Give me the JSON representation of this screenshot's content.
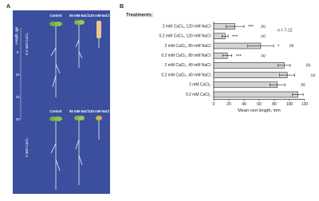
{
  "panel_labels": [
    "A",
    "B"
  ],
  "photo": {
    "columns": [
      "Control",
      "80 mM NaCl",
      "120 mM NaCl"
    ],
    "rows": [
      "0.2 mM CaCl₂",
      "2 mM CaCl₂"
    ],
    "ruler_title": "Length, cm",
    "ruler_ticks": [
      0,
      5,
      10,
      15,
      20
    ]
  },
  "chart_data": {
    "type": "barh",
    "title": "Treatments:",
    "annotation": "n = 7-12",
    "xlabel": "Mean root length, mm",
    "categories": [
      "2 mM CaCl₂, 120 mM NaCl",
      "0.2 mM CaCl₂, 120 mM NaCl",
      "2 mM CaCl₂, 80 mM NaCl",
      "0.2 mM CaCl₂, 80 mM NaCl",
      "2 mM CaCl₂, 40 mM NaCl",
      "0.2 mM CaCl₂, 40 mM NaCl",
      "2 mM CaCl₂",
      "0.2 mM CaCl₂"
    ],
    "series": [
      {
        "color": "#d4d4d4",
        "values": [
          28,
          15,
          62,
          18,
          93,
          97,
          84,
          111
        ],
        "errors": [
          12,
          4,
          17,
          6,
          8,
          10,
          10,
          7
        ]
      }
    ],
    "significance": [
      "***",
      "***",
      "*",
      "***",
      null,
      null,
      null,
      null
    ],
    "groups": [
      "(b)",
      "(a)",
      "(b)",
      "(a)",
      "(b)",
      "(a)",
      "(b)",
      "(a)"
    ],
    "xlim": [
      0,
      120
    ],
    "xticks": [
      0,
      20,
      40,
      60,
      80,
      100,
      120
    ]
  }
}
